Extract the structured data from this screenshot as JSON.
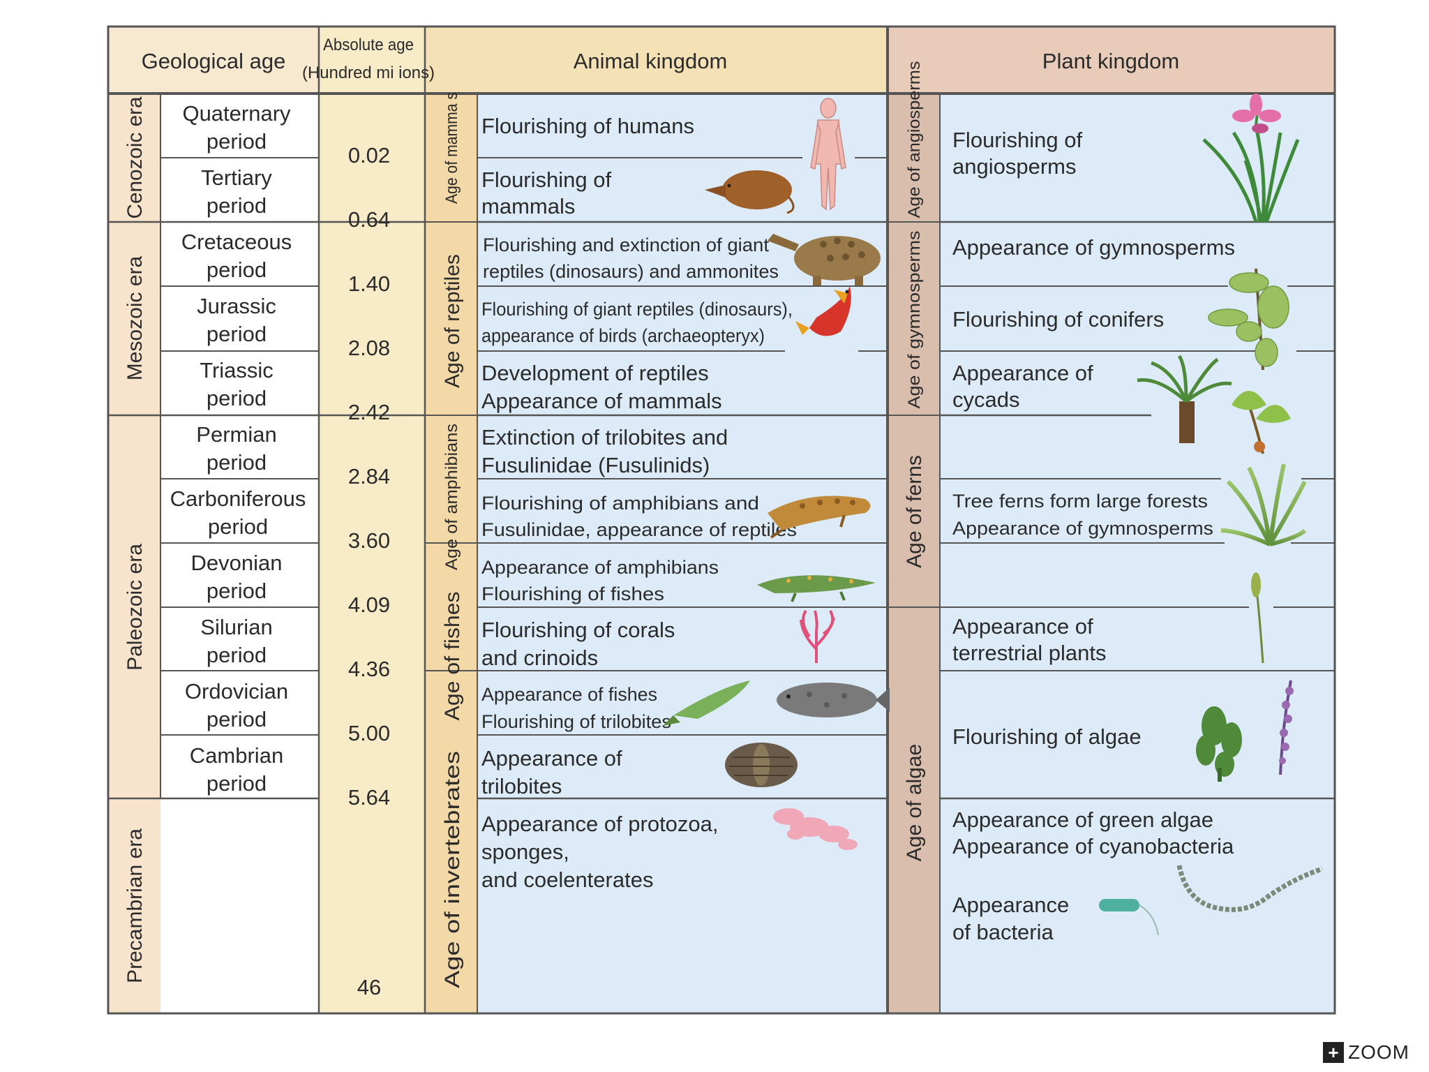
{
  "headers": {
    "geological_age": "Geological age",
    "absolute_age_line1": "Absolute age",
    "absolute_age_line2": "(Hundred mi  ions)",
    "animal_kingdom": "Animal kingdom",
    "plant_kingdom": "Plant kingdom"
  },
  "eras": [
    {
      "label": "Cenozoic era"
    },
    {
      "label": "Mesozoic era"
    },
    {
      "label": "Paleozoic era"
    },
    {
      "label": "Precambrian era"
    }
  ],
  "periods": [
    {
      "line1": "Quaternary",
      "line2": "period"
    },
    {
      "line1": "Tertiary",
      "line2": "period"
    },
    {
      "line1": "Cretaceous",
      "line2": "period"
    },
    {
      "line1": "Jurassic",
      "line2": "period"
    },
    {
      "line1": "Triassic",
      "line2": "period"
    },
    {
      "line1": "Permian",
      "line2": "period"
    },
    {
      "line1": "Carboniferous",
      "line2": "period"
    },
    {
      "line1": "Devonian",
      "line2": "period"
    },
    {
      "line1": "Silurian",
      "line2": "period"
    },
    {
      "line1": "Ordovician",
      "line2": "period"
    },
    {
      "line1": "Cambrian",
      "line2": "period"
    }
  ],
  "absolute_ages": [
    "0.02",
    "0.64",
    "1.40",
    "2.08",
    "2.42",
    "2.84",
    "3.60",
    "4.09",
    "4.36",
    "5.00",
    "5.64",
    "46"
  ],
  "animal_ages": [
    {
      "label": "Age of mamma s"
    },
    {
      "label": "Age of reptiles"
    },
    {
      "label": "Age of amphibians"
    },
    {
      "label": "Age of fishes"
    },
    {
      "label": "Age of invertebrates"
    }
  ],
  "animal_events": [
    {
      "lines": [
        "Flourishing of humans"
      ]
    },
    {
      "lines": [
        "Flourishing of",
        "mammals"
      ]
    },
    {
      "lines": [
        "Flourishing and extinction of giant",
        "reptiles (dinosaurs) and ammonites"
      ]
    },
    {
      "lines": [
        "Flourishing of giant reptiles (dinosaurs),",
        "appearance of birds (archaeopteryx)"
      ]
    },
    {
      "lines": [
        "Development of reptiles",
        "Appearance of mammals"
      ]
    },
    {
      "lines": [
        "Extinction of trilobites and",
        "Fusulinidae (Fusulinids)"
      ]
    },
    {
      "lines": [
        "Flourishing of amphibians and",
        "Fusulinidae, appearance of reptiles"
      ]
    },
    {
      "lines": [
        "Appearance of amphibians",
        "Flourishing of fishes"
      ]
    },
    {
      "lines": [
        "Flourishing of corals",
        "and crinoids"
      ]
    },
    {
      "lines": [
        "Appearance of fishes",
        "Flourishing of trilobites"
      ]
    },
    {
      "lines": [
        "Appearance of",
        "trilobites"
      ]
    },
    {
      "lines": [
        "Appearance of protozoa,",
        "sponges,",
        "and coelenterates"
      ]
    }
  ],
  "plant_ages": [
    {
      "label": "Age of angiosperms"
    },
    {
      "label": "Age of gymnosperms"
    },
    {
      "label": "Age of ferns"
    },
    {
      "label": "Age of algae"
    }
  ],
  "plant_events": [
    {
      "lines": [
        "Flourishing of",
        "angiosperms"
      ]
    },
    {
      "lines": [
        "Appearance of gymnosperms"
      ]
    },
    {
      "lines": [
        "Flourishing of conifers"
      ]
    },
    {
      "lines": [
        "Appearance of",
        "cycads"
      ]
    },
    {
      "lines": [
        "Tree ferns form large forests",
        "Appearance of gymnosperms"
      ]
    },
    {
      "lines": [
        "Appearance of",
        "terrestrial plants"
      ]
    },
    {
      "lines": [
        "Flourishing of algae"
      ]
    },
    {
      "lines": [
        "Appearance of green algae",
        "Appearance of cyanobacteria"
      ]
    },
    {
      "lines": [
        "Appearance",
        "of bacteria"
      ]
    }
  ],
  "zoom": {
    "icon": "+",
    "label": "ZOOM"
  },
  "colors": {
    "header_geo": "#f7e8d0",
    "header_animal": "#f5e1b6",
    "header_plant": "#e8cbb8",
    "era_band": "#f8e4cc",
    "absolute_age_column": "#f7ebc8",
    "animal_age_band": "#f3d9a8",
    "event_area": "#dcebf7",
    "plant_age_band": "#d9beae",
    "grid_line": "#555555"
  },
  "icons": [
    "human-figure-icon",
    "shrew-icon",
    "ankylosaur-icon",
    "archaeopteryx-icon",
    "iris-icon",
    "conifer-icon",
    "cycad-icon",
    "ginkgo-icon",
    "amphibian-icon",
    "crocodile-amphibian-icon",
    "tree-fern-icon",
    "early-plant-icon",
    "coral-icon",
    "fish-icon",
    "coelacanth-icon",
    "trilobite-icon",
    "seaweed-icon",
    "purple-algae-icon",
    "sponge-icon",
    "cyanobacteria-chain-icon",
    "bacterium-icon"
  ]
}
